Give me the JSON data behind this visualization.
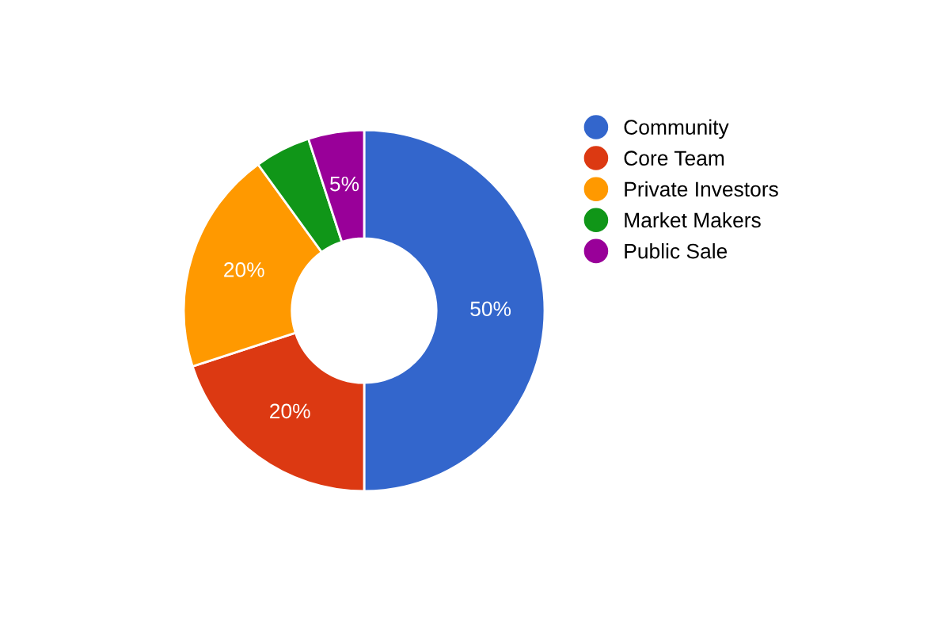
{
  "chart_data": {
    "type": "donut",
    "categories": [
      "Community",
      "Core Team",
      "Private Investors",
      "Market Makers",
      "Public Sale"
    ],
    "values": [
      50,
      20,
      20,
      5,
      5
    ],
    "colors": [
      "#3366cc",
      "#dc3912",
      "#ff9900",
      "#109618",
      "#990099"
    ],
    "value_labels": [
      "50%",
      "20%",
      "20%",
      null,
      "5%"
    ],
    "legend": "right"
  }
}
